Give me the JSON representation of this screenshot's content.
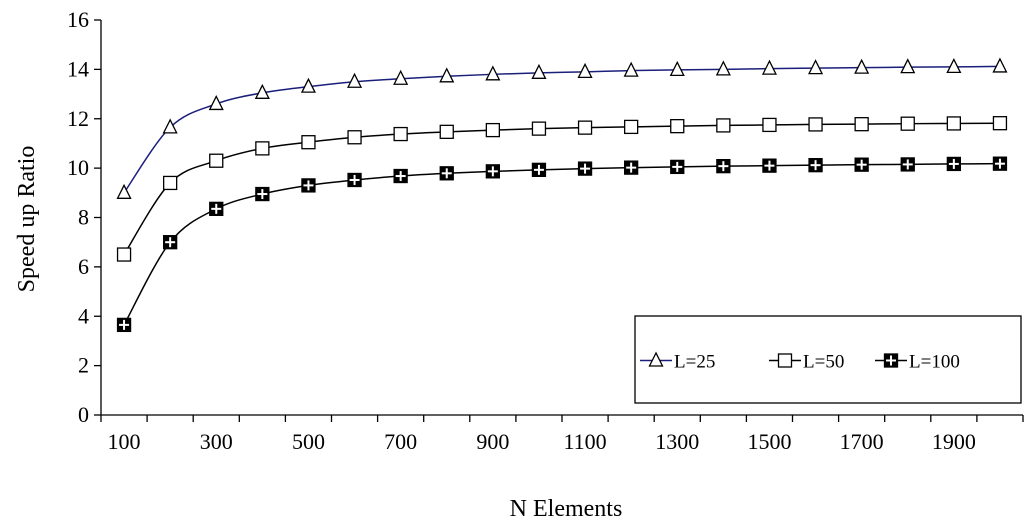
{
  "chart_data": {
    "type": "line",
    "xlabel": "N Elements",
    "ylabel": "Speed up Ratio",
    "x": [
      100,
      200,
      300,
      400,
      500,
      600,
      700,
      800,
      900,
      1000,
      1100,
      1200,
      1300,
      1400,
      1500,
      1600,
      1700,
      1800,
      1900,
      2000
    ],
    "xlim": [
      50,
      2050
    ],
    "ylim": [
      0,
      16
    ],
    "x_tick_labels": [
      "100",
      "300",
      "500",
      "700",
      "900",
      "1100",
      "1300",
      "1500",
      "1700",
      "1900"
    ],
    "x_tick_values": [
      100,
      300,
      500,
      700,
      900,
      1100,
      1300,
      1500,
      1700,
      1900
    ],
    "y_ticks": [
      0,
      2,
      4,
      6,
      8,
      10,
      12,
      14,
      16
    ],
    "grid": false,
    "legend_position": "bottom-right",
    "series": [
      {
        "name": "L=25",
        "marker": "triangle",
        "color": "#1a1f7a",
        "values": [
          9.0,
          11.65,
          12.6,
          13.05,
          13.3,
          13.5,
          13.62,
          13.72,
          13.8,
          13.86,
          13.9,
          13.95,
          13.98,
          14.0,
          14.03,
          14.05,
          14.07,
          14.09,
          14.1,
          14.12
        ]
      },
      {
        "name": "L=50",
        "marker": "square",
        "color": "#000000",
        "values": [
          6.5,
          9.4,
          10.3,
          10.8,
          11.05,
          11.25,
          11.38,
          11.47,
          11.54,
          11.6,
          11.64,
          11.67,
          11.7,
          11.73,
          11.75,
          11.77,
          11.78,
          11.8,
          11.81,
          11.82
        ]
      },
      {
        "name": "L=100",
        "marker": "square-cross",
        "color": "#000000",
        "values": [
          3.65,
          7.0,
          8.35,
          8.95,
          9.3,
          9.52,
          9.68,
          9.79,
          9.87,
          9.93,
          9.98,
          10.02,
          10.05,
          10.08,
          10.1,
          10.12,
          10.14,
          10.15,
          10.17,
          10.18
        ]
      }
    ]
  }
}
